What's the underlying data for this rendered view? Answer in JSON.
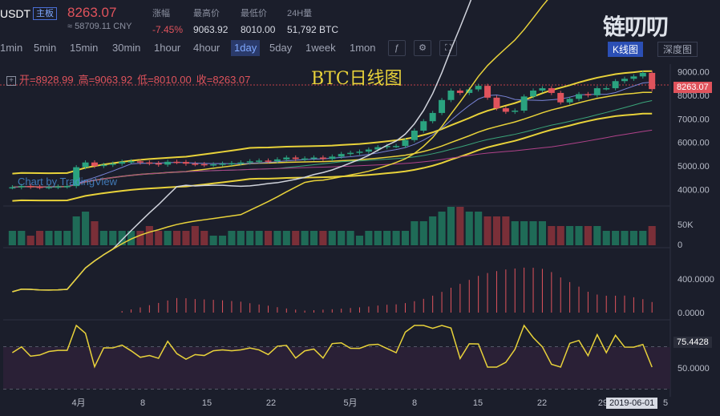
{
  "header": {
    "pair": "USDT",
    "board_tag": "主板",
    "last_price": "8263.07",
    "cny_price": "≈ 58709.11 CNY",
    "stats": [
      {
        "label": "涨幅",
        "value": "-7.45%",
        "red": true
      },
      {
        "label": "最高价",
        "value": "9063.92"
      },
      {
        "label": "最低价",
        "value": "8010.00"
      },
      {
        "label": "24H量",
        "value": "51,792 BTC"
      }
    ],
    "logo": "链叨叨",
    "colors": {
      "up": "#2aa27f",
      "down": "#e0535c",
      "accent": "#e8d23a"
    }
  },
  "toolbar": {
    "intervals": [
      "1min",
      "5min",
      "15min",
      "30min",
      "1hour",
      "4hour",
      "1day",
      "5day",
      "1week",
      "1mon"
    ],
    "active": "1day",
    "icons": [
      "indicator-icon",
      "settings-icon",
      "screenshot-icon"
    ]
  },
  "view_tabs": {
    "kline": "K线图",
    "depth": "深度图"
  },
  "ohlc": {
    "open": "开=8928.99",
    "high": "高=9063.92",
    "low": "低=8010.00",
    "close": "收=8263.07"
  },
  "chart_title": "BTC日线图",
  "watermark": "Chart by TradingView",
  "price_box": "8263.07",
  "indicator_box": "75.4428",
  "date_box": "2019-06-01",
  "chart_data": {
    "type": "candlestick",
    "price_axis": [
      "9000.00",
      "8000.00",
      "7000.00",
      "6000.00",
      "5000.00",
      "4000.00"
    ],
    "volume_axis": [
      "50K",
      "0"
    ],
    "macd_axis": [
      "400.0000",
      "0.0000"
    ],
    "rsi_axis": [
      "50.0000"
    ],
    "x_labels": [
      "4月",
      "8",
      "15",
      "22",
      "5月",
      "8",
      "15",
      "22",
      "29",
      "5"
    ],
    "closes": [
      4100,
      4150,
      4120,
      4100,
      4110,
      4130,
      4150,
      4950,
      5150,
      5000,
      5050,
      5100,
      5180,
      5200,
      5150,
      5120,
      5060,
      5180,
      5170,
      5100,
      5080,
      5050,
      5070,
      5100,
      5120,
      5150,
      5200,
      5230,
      5210,
      5280,
      5360,
      5300,
      5320,
      5360,
      5300,
      5400,
      5510,
      5560,
      5610,
      5700,
      5800,
      5850,
      5850,
      6100,
      6500,
      6900,
      7250,
      7800,
      8200,
      8100,
      8250,
      8400,
      7900,
      7450,
      7300,
      7350,
      7950,
      8200,
      8300,
      8100,
      7700,
      7850,
      8050,
      8000,
      8300,
      8300,
      8600,
      8700,
      8800,
      8950,
      8263
    ],
    "volumes": [
      3,
      3,
      2,
      3,
      3,
      3,
      3,
      6,
      7,
      5,
      3,
      3,
      3,
      3,
      3,
      4,
      3,
      3,
      3,
      3,
      4,
      3,
      2,
      2,
      3,
      3,
      3,
      3,
      3,
      3,
      3,
      3,
      3,
      3,
      3,
      3,
      3,
      3,
      2,
      3,
      3,
      3,
      3,
      3,
      5,
      5,
      6,
      7,
      8,
      8,
      7,
      7,
      6,
      6,
      6,
      5,
      5,
      5,
      5,
      4,
      4,
      4,
      4,
      4,
      4,
      3,
      3,
      3,
      3,
      3,
      4
    ]
  }
}
